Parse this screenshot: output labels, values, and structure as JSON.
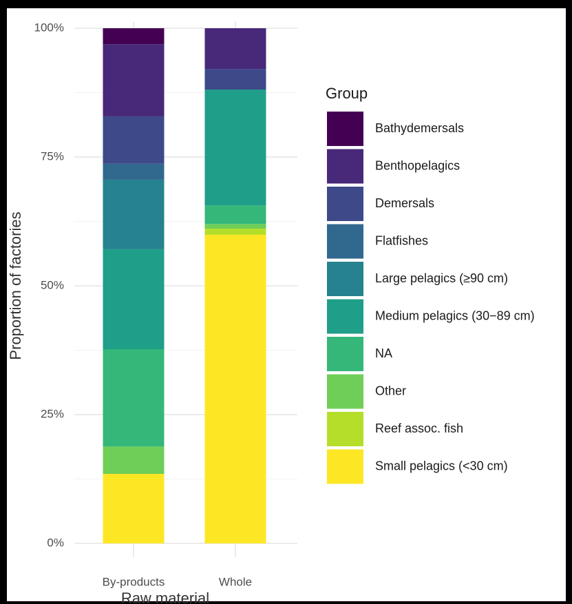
{
  "chart_data": {
    "type": "stacked_bar",
    "x_label": "Raw material",
    "y_label": "Proportion of factories",
    "legend_title": "Group",
    "categories": [
      "By-products",
      "Whole"
    ],
    "series": [
      {
        "name": "Bathydemersals",
        "color": "#440154",
        "values": [
          3.1,
          0
        ]
      },
      {
        "name": "Benthopelagics",
        "color": "#482878",
        "values": [
          14.0,
          7.9
        ]
      },
      {
        "name": "Demersals",
        "color": "#3e4989",
        "values": [
          9.2,
          4.0
        ]
      },
      {
        "name": "Flatfishes",
        "color": "#31688e",
        "values": [
          3.1,
          0
        ]
      },
      {
        "name": "Large pelagics (≥90 cm)",
        "color": "#26828e",
        "values": [
          13.5,
          0
        ]
      },
      {
        "name": "Medium pelagics (30−89 cm)",
        "color": "#1f9e89",
        "values": [
          19.4,
          22.5
        ]
      },
      {
        "name": "NA",
        "color": "#35b779",
        "values": [
          18.9,
          3.6
        ]
      },
      {
        "name": "Other",
        "color": "#6ece58",
        "values": [
          5.3,
          0.9
        ]
      },
      {
        "name": "Reef assoc. fish",
        "color": "#b5de2b",
        "values": [
          0,
          1.2
        ]
      },
      {
        "name": "Small pelagics (<30 cm)",
        "color": "#fde725",
        "values": [
          13.5,
          59.9
        ]
      }
    ],
    "ylim": [
      0,
      100
    ],
    "yticks": [
      {
        "value": 0,
        "label": "0%"
      },
      {
        "value": 25,
        "label": "25%"
      },
      {
        "value": 50,
        "label": "50%"
      },
      {
        "value": 75,
        "label": "75%"
      },
      {
        "value": 100,
        "label": "100%"
      }
    ],
    "grid": true
  }
}
